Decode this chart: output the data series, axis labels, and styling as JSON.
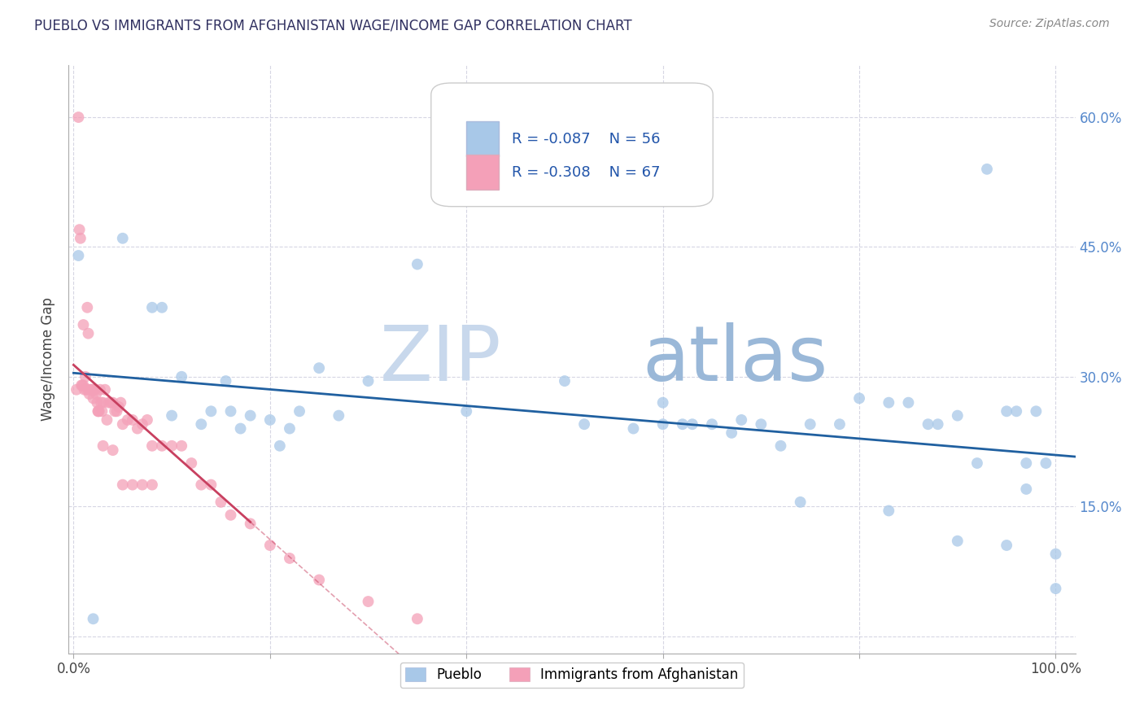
{
  "title": "PUEBLO VS IMMIGRANTS FROM AFGHANISTAN WAGE/INCOME GAP CORRELATION CHART",
  "source_text": "Source: ZipAtlas.com",
  "ylabel": "Wage/Income Gap",
  "xlabel": "",
  "xlim": [
    -0.005,
    1.02
  ],
  "ylim": [
    -0.02,
    0.66
  ],
  "x_ticks": [
    0.0,
    0.2,
    0.4,
    0.6,
    0.8,
    1.0
  ],
  "x_tick_labels": [
    "0.0%",
    "",
    "",
    "",
    "",
    "100.0%"
  ],
  "y_ticks": [
    0.0,
    0.15,
    0.3,
    0.45,
    0.6
  ],
  "y_tick_labels_right": [
    "",
    "15.0%",
    "30.0%",
    "45.0%",
    "60.0%"
  ],
  "legend1_label": "Pueblo",
  "legend2_label": "Immigrants from Afghanistan",
  "R1": -0.087,
  "N1": 56,
  "R2": -0.308,
  "N2": 67,
  "blue_color": "#a8c8e8",
  "pink_color": "#f4a0b8",
  "blue_line_color": "#2060a0",
  "pink_line_color": "#c84060",
  "title_color": "#303060",
  "source_color": "#888888",
  "watermark_color": "#dde4f0",
  "watermark_zip": "ZIP",
  "watermark_atlas": "atlas",
  "blue_scatter_x": [
    0.02,
    0.05,
    0.08,
    0.09,
    0.1,
    0.11,
    0.13,
    0.14,
    0.155,
    0.16,
    0.17,
    0.18,
    0.2,
    0.22,
    0.23,
    0.25,
    0.27,
    0.3,
    0.35,
    0.4,
    0.5,
    0.52,
    0.57,
    0.6,
    0.62,
    0.65,
    0.68,
    0.7,
    0.72,
    0.75,
    0.78,
    0.8,
    0.83,
    0.85,
    0.87,
    0.88,
    0.9,
    0.92,
    0.93,
    0.95,
    0.96,
    0.97,
    0.98,
    0.99,
    1.0,
    0.6,
    0.63,
    0.67,
    0.74,
    0.83,
    0.9,
    0.95,
    0.97,
    1.0,
    0.005,
    0.21
  ],
  "blue_scatter_y": [
    0.02,
    0.46,
    0.38,
    0.38,
    0.255,
    0.3,
    0.245,
    0.26,
    0.295,
    0.26,
    0.24,
    0.255,
    0.25,
    0.24,
    0.26,
    0.31,
    0.255,
    0.295,
    0.43,
    0.26,
    0.295,
    0.245,
    0.24,
    0.27,
    0.245,
    0.245,
    0.25,
    0.245,
    0.22,
    0.245,
    0.245,
    0.275,
    0.27,
    0.27,
    0.245,
    0.245,
    0.255,
    0.2,
    0.54,
    0.26,
    0.26,
    0.2,
    0.26,
    0.2,
    0.055,
    0.245,
    0.245,
    0.235,
    0.155,
    0.145,
    0.11,
    0.105,
    0.17,
    0.095,
    0.44,
    0.22
  ],
  "pink_scatter_x": [
    0.003,
    0.005,
    0.006,
    0.007,
    0.008,
    0.009,
    0.01,
    0.011,
    0.012,
    0.013,
    0.014,
    0.015,
    0.016,
    0.017,
    0.018,
    0.019,
    0.02,
    0.021,
    0.022,
    0.023,
    0.024,
    0.025,
    0.026,
    0.027,
    0.028,
    0.029,
    0.03,
    0.032,
    0.034,
    0.036,
    0.038,
    0.04,
    0.042,
    0.044,
    0.046,
    0.048,
    0.05,
    0.055,
    0.06,
    0.065,
    0.07,
    0.075,
    0.08,
    0.09,
    0.1,
    0.11,
    0.12,
    0.13,
    0.14,
    0.15,
    0.16,
    0.18,
    0.2,
    0.22,
    0.25,
    0.3,
    0.35,
    0.01,
    0.015,
    0.02,
    0.025,
    0.03,
    0.04,
    0.05,
    0.06,
    0.07,
    0.08
  ],
  "pink_scatter_y": [
    0.285,
    0.6,
    0.47,
    0.46,
    0.29,
    0.29,
    0.29,
    0.285,
    0.3,
    0.285,
    0.38,
    0.35,
    0.28,
    0.285,
    0.285,
    0.285,
    0.285,
    0.285,
    0.285,
    0.28,
    0.27,
    0.26,
    0.26,
    0.285,
    0.27,
    0.26,
    0.27,
    0.285,
    0.25,
    0.27,
    0.27,
    0.27,
    0.26,
    0.26,
    0.265,
    0.27,
    0.245,
    0.25,
    0.25,
    0.24,
    0.245,
    0.25,
    0.22,
    0.22,
    0.22,
    0.22,
    0.2,
    0.175,
    0.175,
    0.155,
    0.14,
    0.13,
    0.105,
    0.09,
    0.065,
    0.04,
    0.02,
    0.36,
    0.285,
    0.275,
    0.26,
    0.22,
    0.215,
    0.175,
    0.175,
    0.175,
    0.175
  ]
}
